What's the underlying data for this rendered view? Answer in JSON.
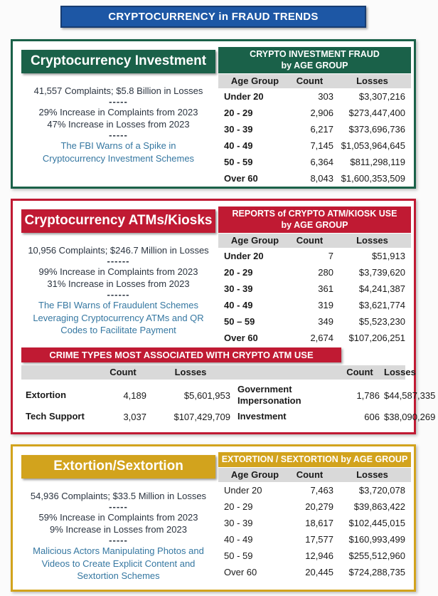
{
  "title_banner": "CRYPTOCURRENCY in FRAUD TRENDS",
  "colors": {
    "banner_blue": "#1d57a5",
    "banner_blue_border": "#163c72",
    "green": "#1a6149",
    "red": "#c01a33",
    "gold": "#d2a31d",
    "link_blue": "#3577a1",
    "header_gray": "#d9d9d9",
    "text_dark": "#2b3440"
  },
  "sections": [
    {
      "title": "Cryptocurrency Investment",
      "stat_line1": "41,557 Complaints; $5.8 Billion in Losses",
      "divider1": "-----",
      "stat_line2": "29% Increase in Complaints from 2023",
      "stat_line3": "47% Increase in Losses from 2023",
      "divider2": "-----",
      "link_text": "The FBI Warns of a Spike in Cryptocurrency Investment Schemes",
      "table": {
        "title_line1": "CRYPTO INVESTMENT FRAUD",
        "title_line2": "by AGE GROUP",
        "col_age": "Age Group",
        "col_count": "Count",
        "col_losses": "Losses",
        "rows": [
          {
            "age": "Under 20",
            "count": "303",
            "losses": "$3,307,216"
          },
          {
            "age": "20 - 29",
            "count": "2,906",
            "losses": "$273,447,400"
          },
          {
            "age": "30 - 39",
            "count": "6,217",
            "losses": "$373,696,736"
          },
          {
            "age": "40 - 49",
            "count": "7,145",
            "losses": "$1,053,964,645"
          },
          {
            "age": "50 - 59",
            "count": "6,364",
            "losses": "$811,298,119"
          },
          {
            "age": "Over 60",
            "count": "8,043",
            "losses": "$1,600,353,509"
          }
        ]
      }
    },
    {
      "title": "Cryptocurrency ATMs/Kiosks",
      "stat_line1": "10,956 Complaints; $246.7 Million in Losses",
      "divider1": "------",
      "stat_line2": "99% Increase in Complaints from 2023",
      "stat_line3": "31% Increase in Losses from 2023",
      "divider2": "------",
      "link_text": "The FBI Warns of Fraudulent Schemes Leveraging Cryptocurrency ATMs and QR Codes to Facilitate Payment",
      "table": {
        "title_line1": "REPORTS of CRYPTO ATM/KIOSK USE",
        "title_line2": "by AGE GROUP",
        "col_age": "Age Group",
        "col_count": "Count",
        "col_losses": "Losses",
        "rows": [
          {
            "age": "Under 20",
            "count": "7",
            "losses": "$51,913"
          },
          {
            "age": "20 - 29",
            "count": "280",
            "losses": "$3,739,620"
          },
          {
            "age": "30 - 39",
            "count": "361",
            "losses": "$4,241,387"
          },
          {
            "age": "40 - 49",
            "count": "319",
            "losses": "$3,621,774"
          },
          {
            "age": "50 – 59",
            "count": "349",
            "losses": "$5,523,230"
          },
          {
            "age": "Over 60",
            "count": "2,674",
            "losses": "$107,206,251"
          }
        ]
      }
    },
    {
      "title": "Extortion/Sextortion",
      "stat_line1": "54,936 Complaints; $33.5 Million in Losses",
      "divider1": "-----",
      "stat_line2": "59% Increase in Complaints from 2023",
      "stat_line3": "9% Increase in Losses from 2023",
      "divider2": "-----",
      "link_text": "Malicious Actors Manipulating Photos and Videos to Create Explicit Content and Sextortion Schemes",
      "table": {
        "title_line1": "EXTORTION / SEXTORTION by AGE GROUP",
        "title_line2": "",
        "col_age": "Age Group",
        "col_count": "Count",
        "col_losses": "Losses",
        "rows": [
          {
            "age": "Under 20",
            "count": "7,463",
            "losses": "$3,720,078"
          },
          {
            "age": "20 - 29",
            "count": "20,279",
            "losses": "$39,863,422"
          },
          {
            "age": "30 - 39",
            "count": "18,617",
            "losses": "$102,445,015"
          },
          {
            "age": "40 - 49",
            "count": "17,577",
            "losses": "$160,993,499"
          },
          {
            "age": "50 - 59",
            "count": "12,946",
            "losses": "$255,512,960"
          },
          {
            "age": "Over 60",
            "count": "20,445",
            "losses": "$724,288,735"
          }
        ]
      }
    }
  ],
  "crime_types": {
    "banner": "CRIME TYPES MOST ASSOCIATED WITH CRYPTO ATM USE",
    "col_count": "Count",
    "col_losses": "Losses",
    "left": [
      {
        "name": "Extortion",
        "count": "4,189",
        "losses": "$5,601,953"
      },
      {
        "name": "Tech Support",
        "count": "3,037",
        "losses": "$107,429,709"
      }
    ],
    "right": [
      {
        "name": "Government Impersonation",
        "count": "1,786",
        "losses": "$44,587,335"
      },
      {
        "name": "Investment",
        "count": "606",
        "losses": "$38,090,269"
      }
    ]
  }
}
